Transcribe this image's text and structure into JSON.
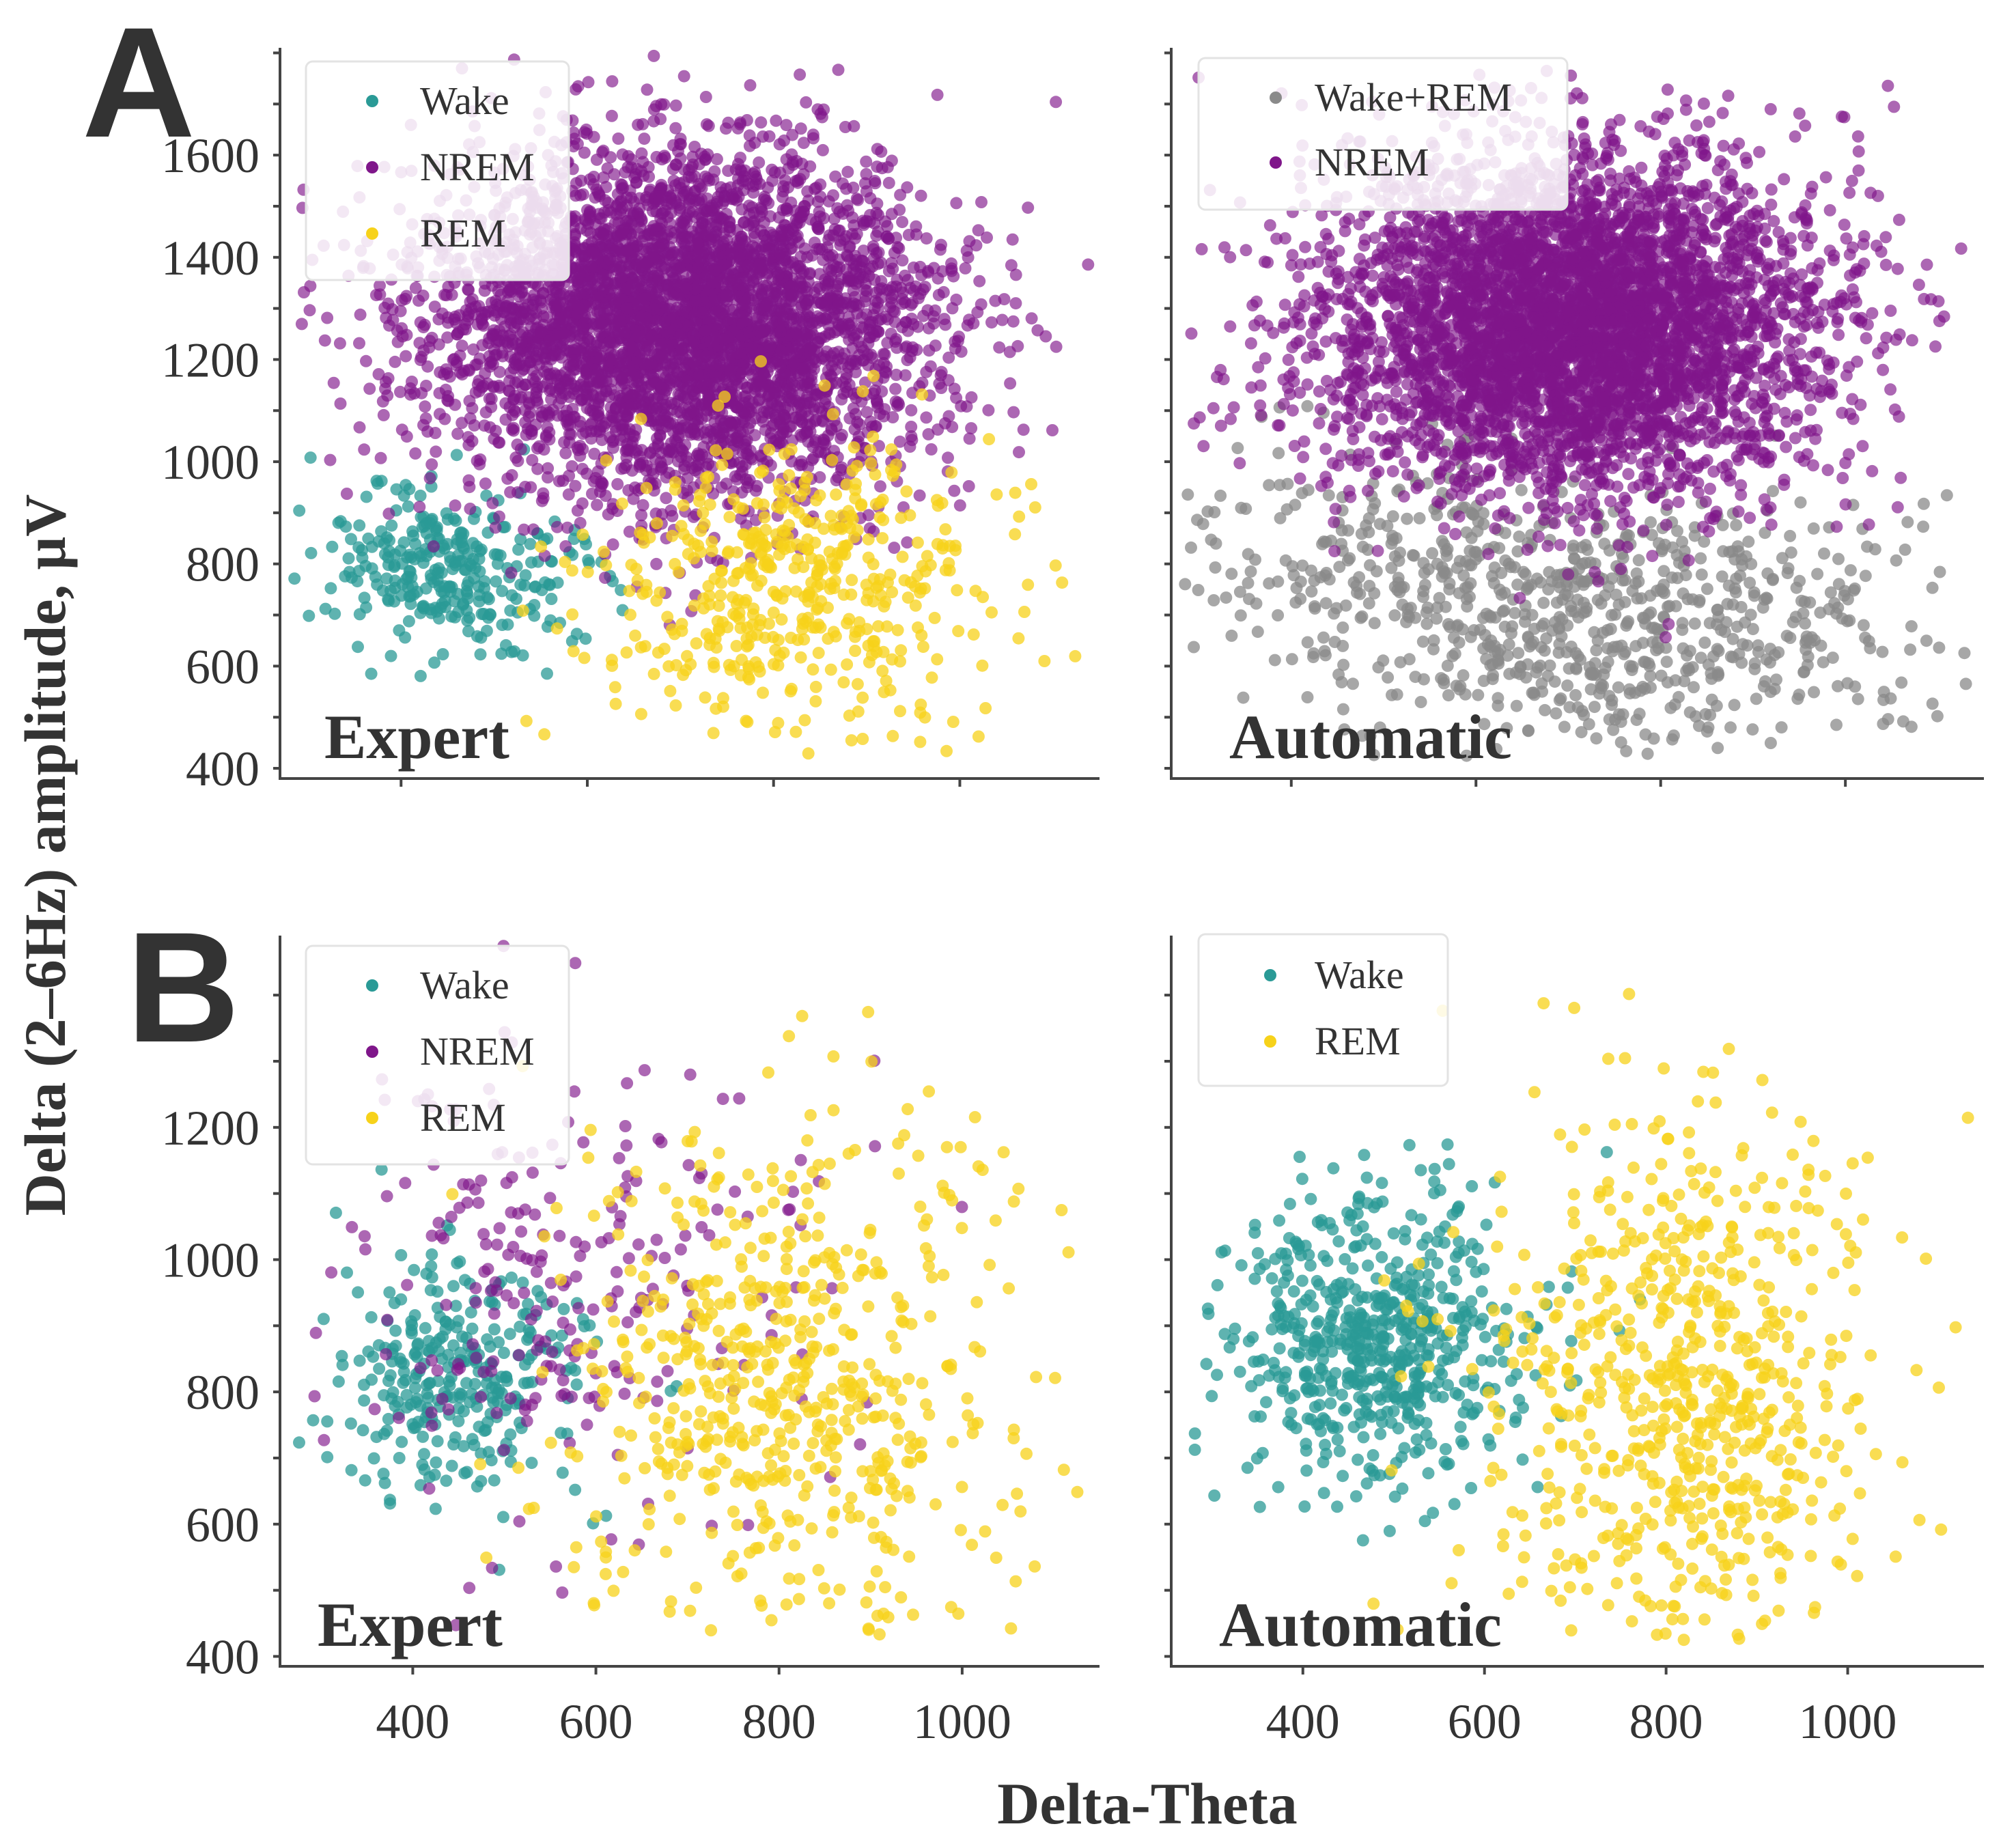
{
  "figure": {
    "ylabel": "Delta (2–6Hz) amplitude, μV",
    "xlabel": "Delta-Theta"
  },
  "colors": {
    "Wake": "#2a9a96",
    "NREM": "#7f168a",
    "REM": "#f7d21a",
    "Wake+REM": "#8a8a8a"
  },
  "chart_data": [
    {
      "type": "scatter",
      "panel": "A",
      "title": "Expert",
      "xlabel": "Delta-Theta",
      "ylabel": "Delta (2–6Hz) amplitude, μV",
      "xlim": [
        270,
        1150
      ],
      "ylim": [
        380,
        1810
      ],
      "xticks": [],
      "yticks": [
        400,
        600,
        800,
        1000,
        1200,
        1400,
        1600
      ],
      "legend": [
        "Wake",
        "NREM",
        "REM"
      ],
      "legend_position": "top-left",
      "series": [
        {
          "name": "Wake",
          "cx": 450,
          "cy": 790,
          "sx": 70,
          "sy": 80,
          "n": 300
        },
        {
          "name": "NREM",
          "cx": 700,
          "cy": 1270,
          "sx": 135,
          "sy": 170,
          "n": 4500
        },
        {
          "name": "REM",
          "cx": 820,
          "cy": 760,
          "sx": 110,
          "sy": 150,
          "n": 500
        }
      ]
    },
    {
      "type": "scatter",
      "panel": "A",
      "title": "Automatic",
      "xlabel": "Delta-Theta",
      "ylabel": "",
      "xlim": [
        270,
        1150
      ],
      "ylim": [
        380,
        1810
      ],
      "xticks": [],
      "yticks": [],
      "legend": [
        "Wake+REM",
        "NREM"
      ],
      "legend_position": "top-left",
      "series": [
        {
          "name": "Wake+REM",
          "cx": 700,
          "cy": 790,
          "sx": 200,
          "sy": 150,
          "n": 900
        },
        {
          "name": "NREM",
          "cx": 700,
          "cy": 1270,
          "sx": 135,
          "sy": 170,
          "n": 4500
        }
      ]
    },
    {
      "type": "scatter",
      "panel": "B",
      "title": "Expert",
      "xlabel": "Delta-Theta",
      "ylabel": "Delta (2–6Hz) amplitude, μV",
      "xlim": [
        255,
        1150
      ],
      "ylim": [
        385,
        1490
      ],
      "xticks": [
        400,
        600,
        800,
        1000
      ],
      "yticks": [
        400,
        600,
        800,
        1000,
        1200
      ],
      "legend": [
        "Wake",
        "NREM",
        "REM"
      ],
      "legend_position": "top-left",
      "series": [
        {
          "name": "Wake",
          "cx": 450,
          "cy": 820,
          "sx": 70,
          "sy": 90,
          "n": 300
        },
        {
          "name": "NREM",
          "cx": 560,
          "cy": 960,
          "sx": 140,
          "sy": 170,
          "n": 250
        },
        {
          "name": "REM",
          "cx": 810,
          "cy": 820,
          "sx": 120,
          "sy": 200,
          "n": 600
        }
      ]
    },
    {
      "type": "scatter",
      "panel": "B",
      "title": "Automatic",
      "xlabel": "Delta-Theta",
      "ylabel": "",
      "xlim": [
        255,
        1150
      ],
      "ylim": [
        385,
        1490
      ],
      "xticks": [
        400,
        600,
        800,
        1000
      ],
      "yticks": [],
      "legend": [
        "Wake",
        "REM"
      ],
      "legend_position": "top-left",
      "series": [
        {
          "name": "Wake",
          "cx": 480,
          "cy": 880,
          "sx": 85,
          "sy": 110,
          "n": 600
        },
        {
          "name": "REM",
          "cx": 820,
          "cy": 800,
          "sx": 110,
          "sy": 210,
          "n": 700
        }
      ]
    }
  ],
  "panels": [
    {
      "letter": "A",
      "left_title": "Expert",
      "right_title": "Automatic"
    },
    {
      "letter": "B",
      "left_title": "Expert",
      "right_title": "Automatic"
    }
  ],
  "legends": {
    "a_left": [
      "Wake",
      "NREM",
      "REM"
    ],
    "a_right": [
      "Wake+REM",
      "NREM"
    ],
    "b_left": [
      "Wake",
      "NREM",
      "REM"
    ],
    "b_right": [
      "Wake",
      "REM"
    ]
  }
}
